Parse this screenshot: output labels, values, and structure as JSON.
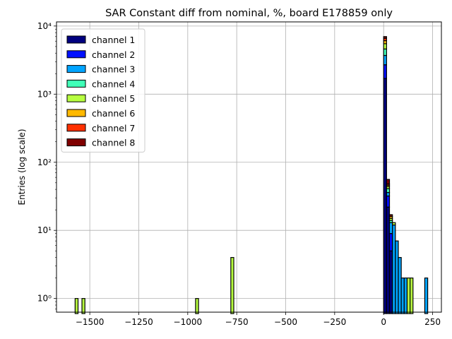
{
  "chart_data": {
    "type": "bar",
    "title": "SAR Constant diff from nominal, %, board E178859 only",
    "xlabel": "",
    "ylabel": "Entries (log scale)",
    "y_scale": "log",
    "xlim": [
      -1670,
      295
    ],
    "ylim": [
      0.63,
      11500
    ],
    "grid": true,
    "legend_position": "top-left",
    "stacked": true,
    "bin_width": 15,
    "x_ticks": [
      -1500,
      -1250,
      -1000,
      -750,
      -500,
      -250,
      0,
      250
    ],
    "x_tick_labels": [
      "−1500",
      "−1250",
      "−1000",
      "−750",
      "−500",
      "−250",
      "0",
      "250"
    ],
    "y_ticks": [
      1,
      10,
      100,
      1000,
      10000
    ],
    "y_tick_labels": [
      "10⁰",
      "10¹",
      "10²",
      "10³",
      "10⁴"
    ],
    "series": [
      {
        "name": "channel 1",
        "color": "#00007f",
        "bins": [
          [
            0,
            1700
          ],
          [
            15,
            22
          ],
          [
            30,
            5
          ]
        ]
      },
      {
        "name": "channel 2",
        "color": "#0010ff",
        "bins": [
          [
            0,
            1000
          ],
          [
            15,
            10
          ],
          [
            30,
            4
          ]
        ]
      },
      {
        "name": "channel 3",
        "color": "#00a4ff",
        "bins": [
          [
            0,
            1000
          ],
          [
            15,
            4
          ],
          [
            30,
            4
          ],
          [
            45,
            12
          ],
          [
            60,
            7
          ],
          [
            75,
            4
          ],
          [
            90,
            2
          ],
          [
            105,
            2
          ],
          [
            210,
            2
          ]
        ]
      },
      {
        "name": "channel 4",
        "color": "#40ffb7",
        "bins": [
          [
            0,
            900
          ],
          [
            15,
            5
          ],
          [
            30,
            1
          ]
        ]
      },
      {
        "name": "channel 5",
        "color": "#b7ff40",
        "bins": [
          [
            -1575,
            1
          ],
          [
            -1540,
            1
          ],
          [
            -960,
            1
          ],
          [
            -780,
            4
          ],
          [
            0,
            900
          ],
          [
            15,
            3
          ],
          [
            30,
            1
          ],
          [
            45,
            1
          ],
          [
            120,
            2
          ],
          [
            135,
            2
          ]
        ]
      },
      {
        "name": "channel 6",
        "color": "#ffb900",
        "bins": [
          [
            0,
            600
          ],
          [
            15,
            2
          ],
          [
            30,
            1
          ]
        ]
      },
      {
        "name": "channel 7",
        "color": "#ff3000",
        "bins": [
          [
            0,
            500
          ],
          [
            15,
            2
          ]
        ]
      },
      {
        "name": "channel 8",
        "color": "#7f0000",
        "bins": [
          [
            0,
            400
          ],
          [
            15,
            8
          ],
          [
            30,
            1
          ]
        ]
      }
    ]
  }
}
